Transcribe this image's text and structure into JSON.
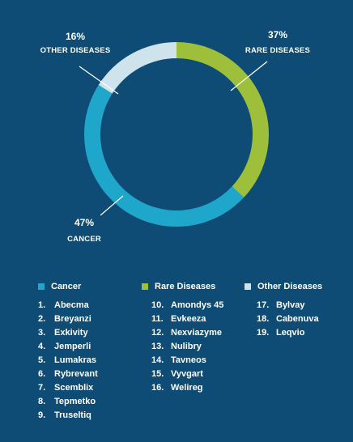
{
  "chart_data": {
    "type": "pie",
    "donut": true,
    "slices": [
      {
        "label": "RARE DISEASES",
        "value": 37,
        "pct_text": "37%",
        "color": "#9dbf3a"
      },
      {
        "label": "CANCER",
        "value": 47,
        "pct_text": "47%",
        "color": "#1fa6cb"
      },
      {
        "label": "OTHER DISEASES",
        "value": 16,
        "pct_text": "16%",
        "color": "#cfe3ec"
      }
    ]
  },
  "legend": {
    "groups": [
      {
        "title": "Cancer",
        "color": "#1fa6cb",
        "items": [
          {
            "num": "1.",
            "name": "Abecma"
          },
          {
            "num": "2.",
            "name": "Breyanzi"
          },
          {
            "num": "3.",
            "name": "Exkivity"
          },
          {
            "num": "4.",
            "name": "Jemperli"
          },
          {
            "num": "5.",
            "name": "Lumakras"
          },
          {
            "num": "6.",
            "name": "Rybrevant"
          },
          {
            "num": "7.",
            "name": "Scemblix"
          },
          {
            "num": "8.",
            "name": "Tepmetko"
          },
          {
            "num": "9.",
            "name": "Truseltiq"
          }
        ]
      },
      {
        "title": "Rare Diseases",
        "color": "#9dbf3a",
        "items": [
          {
            "num": "10.",
            "name": "Amondys 45"
          },
          {
            "num": "11.",
            "name": "Evkeeza"
          },
          {
            "num": "12.",
            "name": "Nexviazyme"
          },
          {
            "num": "13.",
            "name": "Nulibry"
          },
          {
            "num": "14.",
            "name": "Tavneos"
          },
          {
            "num": "15.",
            "name": "Vyvgart"
          },
          {
            "num": "16.",
            "name": "Welireg"
          }
        ]
      },
      {
        "title": "Other Diseases",
        "color": "#cfe3ec",
        "items": [
          {
            "num": "17.",
            "name": "Bylvay"
          },
          {
            "num": "18.",
            "name": "Cabenuva"
          },
          {
            "num": "19.",
            "name": "Leqvio"
          }
        ]
      }
    ]
  }
}
